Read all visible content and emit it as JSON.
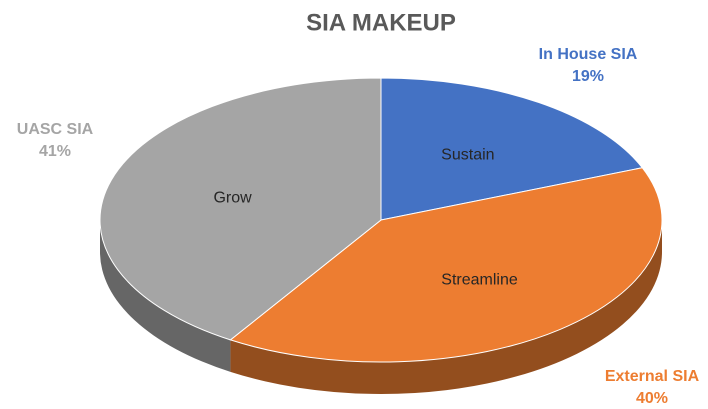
{
  "chart_data": {
    "type": "pie",
    "title": "SIA MAKEUP",
    "categories": [
      "In House SIA",
      "External SIA",
      "UASC SIA"
    ],
    "values": [
      19,
      40,
      41
    ],
    "value_labels": [
      "19%",
      "40%",
      "41%"
    ],
    "slice_labels": [
      "Sustain",
      "Streamline",
      "Grow"
    ],
    "colors": [
      "#4472c4",
      "#ed7d31",
      "#a5a5a5"
    ]
  }
}
